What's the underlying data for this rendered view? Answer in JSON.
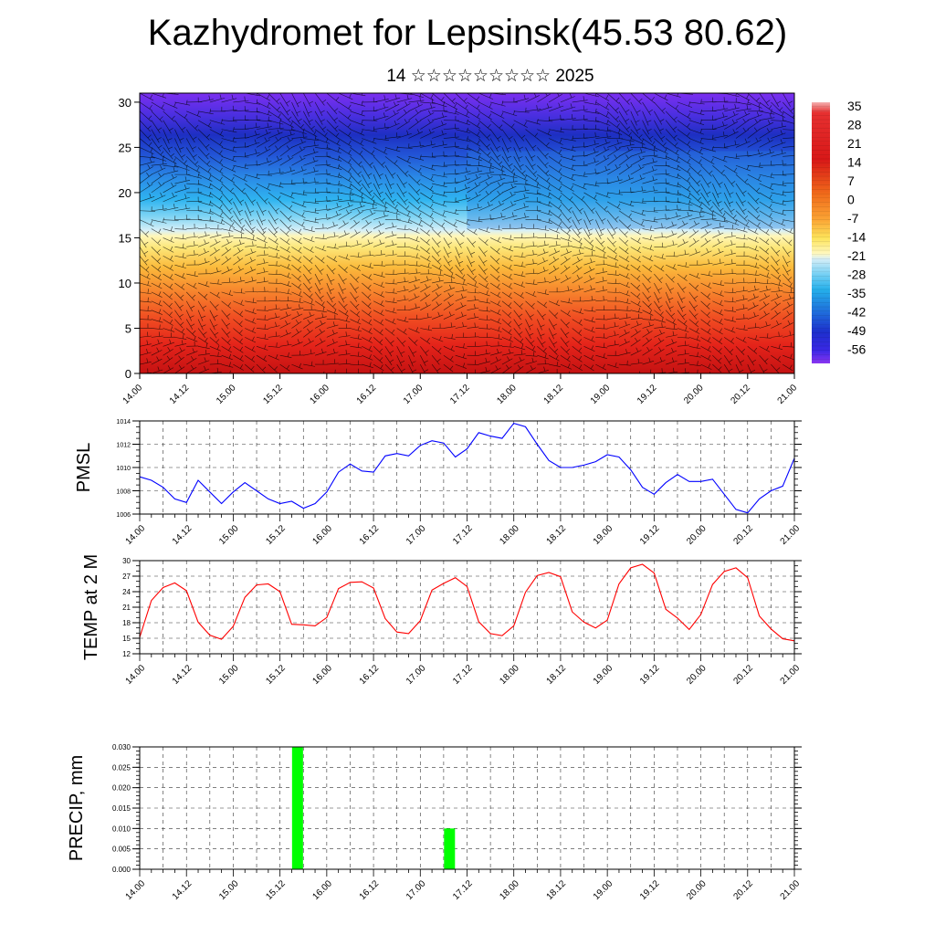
{
  "page": {
    "title": "Kazhydromet for Lepsinsk(45.53 80.62)",
    "subtitle": "14 ☆☆☆☆☆☆☆☆☆ 2025"
  },
  "colors": {
    "pmsl_line": "#0000ff",
    "temp_line": "#ff0000",
    "precip_bar": "#00ff00"
  },
  "chart_data": [
    {
      "type": "heatmap",
      "title": "",
      "xlabel": "",
      "ylabel": "",
      "xlim": [
        0,
        168
      ],
      "ylim": [
        0,
        31
      ],
      "yticks": [
        0,
        5,
        10,
        15,
        20,
        25,
        30
      ],
      "x_tick_labels": [
        "14.00",
        "14.12",
        "15.00",
        "15.12",
        "16.00",
        "16.12",
        "17.00",
        "17.12",
        "18.00",
        "18.12",
        "19.00",
        "19.12",
        "20.00",
        "20.12",
        "21.00"
      ],
      "colorbar_labels": [
        "35",
        "28",
        "21",
        "14",
        "7",
        "0",
        "-7",
        "-14",
        "-21",
        "-28",
        "-35",
        "-42",
        "-49",
        "-56"
      ],
      "overlay": "wind barbs"
    },
    {
      "type": "line",
      "title": "",
      "ylabel": "PMSL",
      "ylim": [
        1006,
        1014
      ],
      "yticks": [
        1006,
        1008,
        1010,
        1012,
        1014
      ],
      "x_tick_labels": [
        "14.00",
        "14.12",
        "15.00",
        "15.12",
        "16.00",
        "16.12",
        "17.00",
        "17.12",
        "18.00",
        "18.12",
        "19.00",
        "19.12",
        "20.00",
        "20.12",
        "21.00"
      ],
      "grid": true,
      "x": [
        0,
        3,
        6,
        9,
        12,
        15,
        18,
        21,
        24,
        27,
        30,
        33,
        36,
        39,
        42,
        45,
        48,
        51,
        54,
        57,
        60,
        63,
        66,
        69,
        72,
        75,
        78,
        81,
        84,
        87,
        90,
        93,
        96,
        99,
        102,
        105,
        108,
        111,
        114,
        117,
        120,
        123,
        126,
        129,
        132,
        135,
        138,
        141,
        144,
        147,
        150,
        153,
        156,
        159,
        162,
        165,
        168
      ],
      "values": [
        1009.2,
        1008.9,
        1008.3,
        1007.3,
        1007.0,
        1008.9,
        1007.9,
        1006.9,
        1007.9,
        1008.7,
        1008.0,
        1007.3,
        1006.9,
        1007.1,
        1006.5,
        1006.9,
        1007.9,
        1009.6,
        1010.3,
        1009.7,
        1009.6,
        1011.0,
        1011.2,
        1011.0,
        1011.9,
        1012.3,
        1012.1,
        1010.9,
        1011.6,
        1013.0,
        1012.7,
        1012.5,
        1013.8,
        1013.5,
        1012.0,
        1010.6,
        1010.0,
        1010.0,
        1010.2,
        1010.5,
        1011.1,
        1010.9,
        1009.8,
        1008.3,
        1007.7,
        1008.7,
        1009.4,
        1008.8,
        1008.8,
        1009.0,
        1007.7,
        1006.4,
        1006.1,
        1007.3,
        1008.0,
        1008.4,
        1010.8
      ]
    },
    {
      "type": "line",
      "title": "",
      "ylabel": "TEMP at 2 M",
      "ylim": [
        12,
        30
      ],
      "yticks": [
        12,
        15,
        18,
        21,
        24,
        27,
        30
      ],
      "x_tick_labels": [
        "14.00",
        "14.12",
        "15.00",
        "15.12",
        "16.00",
        "16.12",
        "17.00",
        "17.12",
        "18.00",
        "18.12",
        "19.00",
        "19.12",
        "20.00",
        "20.12",
        "21.00"
      ],
      "grid": true,
      "x": [
        0,
        3,
        6,
        9,
        12,
        15,
        18,
        21,
        24,
        27,
        30,
        33,
        36,
        39,
        42,
        45,
        48,
        51,
        54,
        57,
        60,
        63,
        66,
        69,
        72,
        75,
        78,
        81,
        84,
        87,
        90,
        93,
        96,
        99,
        102,
        105,
        108,
        111,
        114,
        117,
        120,
        123,
        126,
        129,
        132,
        135,
        138,
        141,
        144,
        147,
        150,
        153,
        156,
        159,
        162,
        165,
        168
      ],
      "values": [
        15.2,
        22.3,
        24.8,
        25.7,
        24.2,
        18.1,
        15.6,
        14.8,
        17.3,
        22.9,
        25.3,
        25.5,
        24.0,
        17.7,
        17.6,
        17.4,
        19.0,
        24.6,
        25.8,
        25.9,
        24.7,
        18.8,
        16.2,
        15.9,
        18.4,
        24.3,
        25.6,
        26.7,
        25.0,
        18.2,
        15.9,
        15.5,
        17.4,
        23.9,
        27.1,
        27.7,
        26.9,
        20.1,
        18.1,
        17.0,
        18.5,
        25.5,
        28.6,
        29.3,
        27.6,
        20.6,
        18.9,
        16.7,
        19.6,
        25.4,
        27.9,
        28.6,
        26.7,
        19.3,
        16.8,
        14.9,
        14.5
      ]
    },
    {
      "type": "bar",
      "title": "",
      "ylabel": "PRECIP, mm",
      "ylim": [
        0,
        0.03
      ],
      "yticks": [
        "0.000",
        "0.005",
        "0.010",
        "0.015",
        "0.020",
        "0.025",
        "0.030"
      ],
      "x_tick_labels": [
        "14.00",
        "14.12",
        "15.00",
        "15.12",
        "16.00",
        "16.12",
        "17.00",
        "17.12",
        "18.00",
        "18.12",
        "19.00",
        "19.12",
        "20.00",
        "20.12",
        "21.00"
      ],
      "grid": true,
      "x": [
        40.5,
        79.5
      ],
      "values": [
        0.03,
        0.01
      ]
    }
  ]
}
